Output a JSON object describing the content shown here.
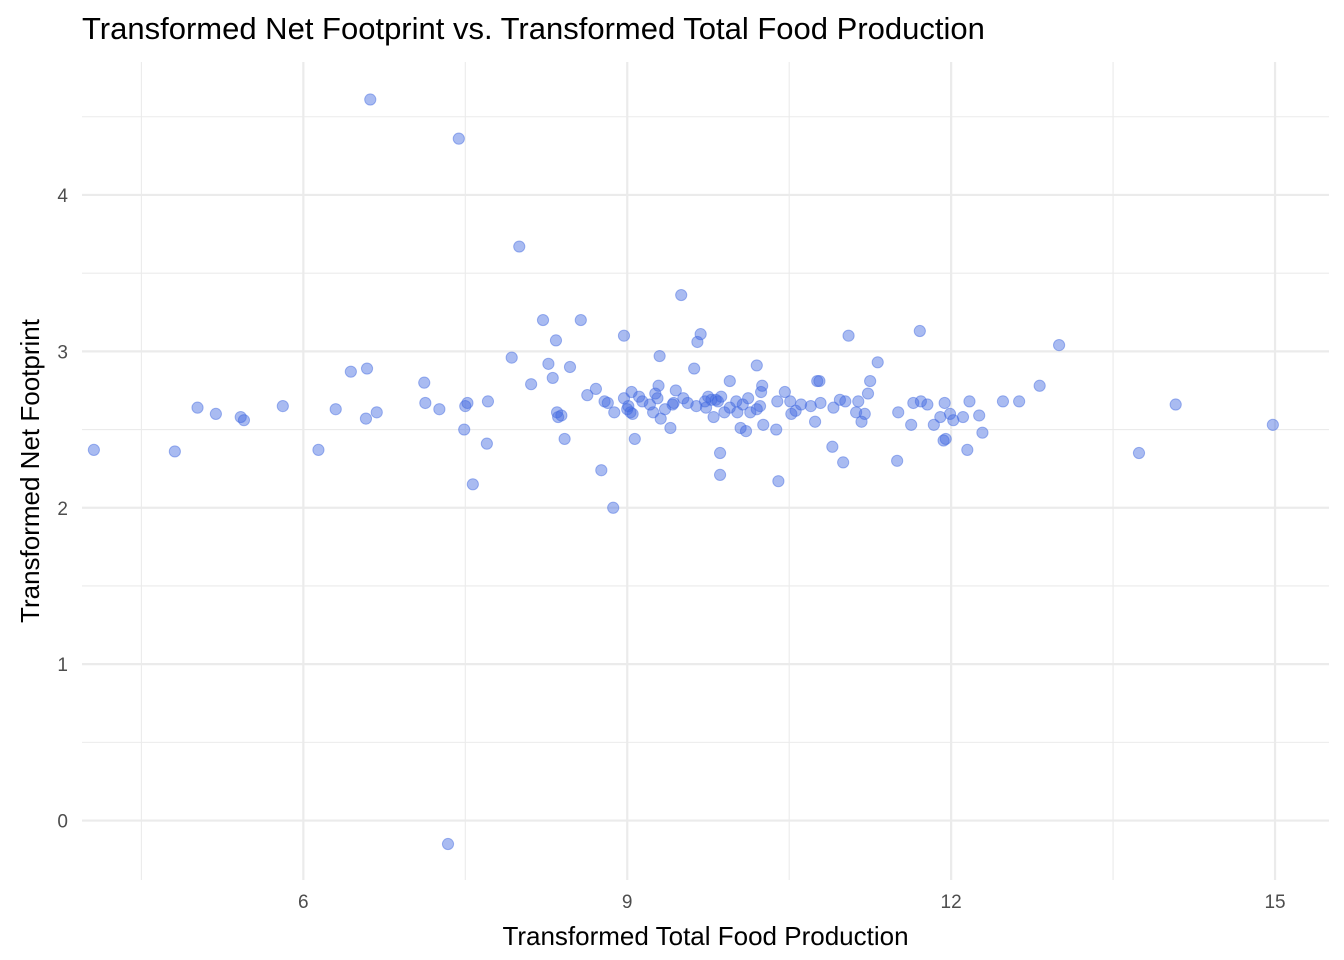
{
  "chart_data": {
    "type": "scatter",
    "title": "Transformed Net Footprint vs. Transformed Total Food Production",
    "xlabel": "Transformed Total Food Production",
    "ylabel": "Transformed Net Footprint",
    "xlim": [
      3.95,
      15.5
    ],
    "ylim": [
      -0.38,
      4.85
    ],
    "x_ticks": [
      6,
      9,
      12,
      15
    ],
    "x_minor_ticks": [
      4.5,
      7.5,
      10.5,
      13.5
    ],
    "y_ticks": [
      0,
      1,
      2,
      3,
      4
    ],
    "y_minor_ticks": [
      0.5,
      1.5,
      2.5,
      3.5,
      4.5
    ],
    "grid": true,
    "point_color": "#4169E1",
    "x": [
      4.06,
      4.81,
      5.02,
      5.19,
      5.42,
      5.45,
      5.81,
      6.14,
      6.3,
      6.44,
      6.58,
      6.59,
      6.62,
      6.68,
      7.12,
      7.13,
      7.26,
      7.34,
      7.44,
      7.49,
      7.5,
      7.52,
      7.57,
      7.7,
      7.71,
      7.93,
      8.0,
      8.11,
      8.22,
      8.27,
      8.31,
      8.34,
      8.35,
      8.36,
      8.39,
      8.42,
      8.47,
      8.57,
      8.63,
      8.71,
      8.76,
      8.79,
      8.82,
      8.87,
      8.88,
      8.97,
      8.97,
      9.0,
      9.01,
      9.03,
      9.04,
      9.05,
      9.07,
      9.11,
      9.14,
      9.21,
      9.24,
      9.26,
      9.28,
      9.29,
      9.3,
      9.31,
      9.35,
      9.4,
      9.42,
      9.43,
      9.45,
      9.5,
      9.52,
      9.56,
      9.62,
      9.64,
      9.65,
      9.68,
      9.72,
      9.73,
      9.75,
      9.78,
      9.8,
      9.82,
      9.84,
      9.86,
      9.86,
      9.87,
      9.9,
      9.95,
      9.95,
      10.01,
      10.02,
      10.05,
      10.07,
      10.1,
      10.12,
      10.14,
      10.2,
      10.2,
      10.23,
      10.24,
      10.25,
      10.26,
      10.38,
      10.39,
      10.4,
      10.46,
      10.51,
      10.52,
      10.56,
      10.61,
      10.7,
      10.74,
      10.76,
      10.78,
      10.79,
      10.9,
      10.91,
      10.97,
      11.0,
      11.02,
      11.05,
      11.12,
      11.14,
      11.17,
      11.2,
      11.23,
      11.25,
      11.32,
      11.5,
      11.51,
      11.63,
      11.65,
      11.71,
      11.72,
      11.78,
      11.84,
      11.9,
      11.93,
      11.94,
      11.95,
      11.99,
      12.02,
      12.11,
      12.15,
      12.17,
      12.26,
      12.29,
      12.48,
      12.63,
      12.82,
      13.0,
      13.74,
      14.08,
      14.98
    ],
    "y": [
      2.37,
      2.36,
      2.64,
      2.6,
      2.58,
      2.56,
      2.65,
      2.37,
      2.63,
      2.87,
      2.57,
      2.89,
      4.61,
      2.61,
      2.8,
      2.67,
      2.63,
      -0.15,
      4.36,
      2.5,
      2.65,
      2.67,
      2.15,
      2.41,
      2.68,
      2.96,
      3.67,
      2.79,
      3.2,
      2.92,
      2.83,
      3.07,
      2.61,
      2.58,
      2.59,
      2.44,
      2.9,
      3.2,
      2.72,
      2.76,
      2.24,
      2.68,
      2.67,
      2.0,
      2.61,
      3.1,
      2.7,
      2.63,
      2.65,
      2.61,
      2.74,
      2.6,
      2.44,
      2.71,
      2.68,
      2.66,
      2.61,
      2.73,
      2.7,
      2.78,
      2.97,
      2.57,
      2.63,
      2.51,
      2.66,
      2.67,
      2.75,
      3.36,
      2.7,
      2.67,
      2.89,
      2.65,
      3.06,
      3.11,
      2.68,
      2.64,
      2.71,
      2.69,
      2.58,
      2.69,
      2.68,
      2.21,
      2.35,
      2.71,
      2.61,
      2.64,
      2.81,
      2.68,
      2.61,
      2.51,
      2.66,
      2.49,
      2.7,
      2.61,
      2.63,
      2.91,
      2.65,
      2.74,
      2.78,
      2.53,
      2.5,
      2.68,
      2.17,
      2.74,
      2.68,
      2.6,
      2.62,
      2.66,
      2.65,
      2.55,
      2.81,
      2.81,
      2.67,
      2.39,
      2.64,
      2.69,
      2.29,
      2.68,
      3.1,
      2.61,
      2.68,
      2.55,
      2.6,
      2.73,
      2.81,
      2.93,
      2.3,
      2.61,
      2.53,
      2.67,
      3.13,
      2.68,
      2.66,
      2.53,
      2.58,
      2.43,
      2.67,
      2.44,
      2.6,
      2.56,
      2.58,
      2.37,
      2.68,
      2.59,
      2.48,
      2.68,
      2.68,
      2.78,
      3.04,
      2.35,
      2.66,
      2.53
    ]
  }
}
